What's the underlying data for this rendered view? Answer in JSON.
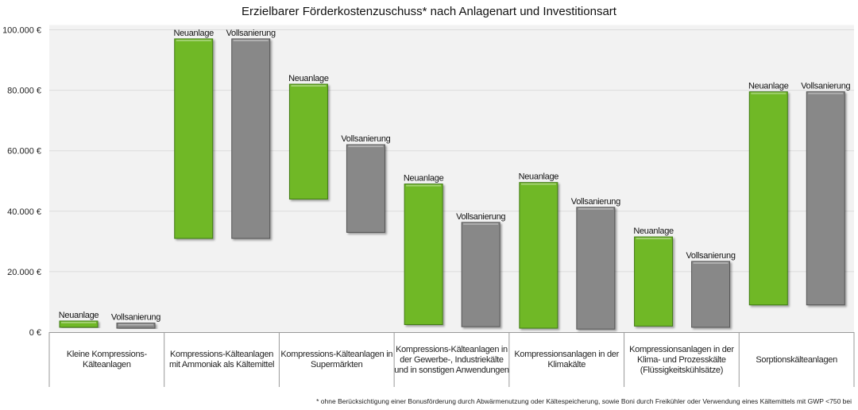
{
  "chart_data": {
    "type": "bar",
    "subtype": "floating-range",
    "title": "Erzielbarer Förderkostenzuschuss* nach Anlagenart und Investitionsart",
    "categories": [
      "Kleine Kompressions-Kälteanlagen",
      "Kompressions-Kälteanlagen mit Ammoniak als Kältemittel",
      "Kompressions-Kälteanlagen in Supermärkten",
      "Kompressions-Kälteanlagen in der Gewerbe-, Industriekälte und in sonstigen Anwendungen",
      "Kompressionsanlagen in der Klimakälte",
      "Kompressionsanlagen in der Klima- und Prozesskälte (Flüssigkeitskühlsätze)",
      "Sorptionskälteanlagen"
    ],
    "series": [
      {
        "name": "Neuanlage",
        "color": "#6fb825",
        "ranges": [
          [
            1600,
            3700
          ],
          [
            31000,
            97000
          ],
          [
            44000,
            82000
          ],
          [
            2500,
            49000
          ],
          [
            1300,
            49500
          ],
          [
            2000,
            31500
          ],
          [
            9000,
            79500
          ]
        ]
      },
      {
        "name": "Vollsanierung",
        "color": "#888888",
        "ranges": [
          [
            1300,
            3000
          ],
          [
            31000,
            97000
          ],
          [
            33000,
            62000
          ],
          [
            1800,
            36300
          ],
          [
            1000,
            41300
          ],
          [
            1600,
            23400
          ],
          [
            9000,
            79500
          ]
        ]
      }
    ],
    "yticks": [
      "0 €",
      "20.000 €",
      "40.000 €",
      "60.000 €",
      "80.000 €",
      "100.000 €"
    ],
    "ylim": [
      0,
      100000
    ],
    "grid": true,
    "legend": "bottom-left",
    "footnote": "* ohne Berücksichtigung einer Bonusförderung durch Abwärmenutzung oder Kältespeicherung, sowie Boni durch Freikühler oder Verwendung eines Kältemittels mit GWP <750 bei"
  }
}
